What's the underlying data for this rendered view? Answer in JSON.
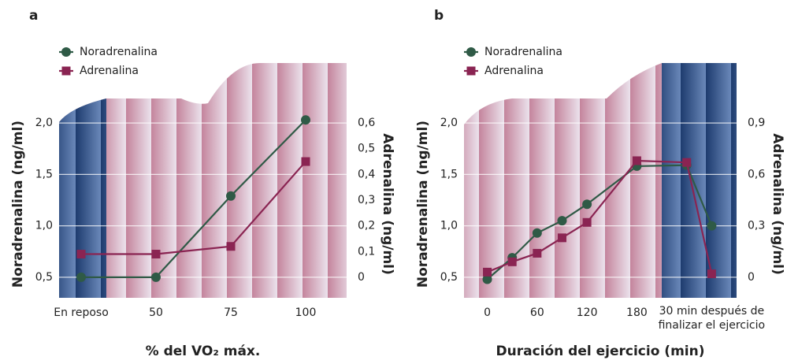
{
  "chart_data": [
    {
      "type": "line",
      "label": "a",
      "xlabel": "% del VO₂ máx.",
      "ylabel": "Noradrenalina (ng/ml)",
      "y2label": "Adrenalina (ng/ml)",
      "categories": [
        "En reposo",
        "50",
        "75",
        "100"
      ],
      "series": [
        {
          "name": "Noradrenalina",
          "color": "#2f5a46",
          "marker": "circle",
          "values": [
            0.5,
            0.5,
            1.29,
            2.03
          ]
        },
        {
          "name": "Adrenalina",
          "color": "#8a2452",
          "marker": "square",
          "axis": "y2",
          "values": [
            0.09,
            0.09,
            0.12,
            0.45
          ]
        }
      ],
      "ylim": [
        0.3,
        2.2
      ],
      "yticks": [
        {
          "value": 0.5,
          "label": "0,5"
        },
        {
          "value": 1,
          "label": "1,0"
        },
        {
          "value": 1.5,
          "label": "1,5"
        },
        {
          "value": 2,
          "label": "2,0"
        }
      ],
      "y2lim": [
        -0.08,
        0.68
      ],
      "y2ticks": [
        0,
        {
          "value": 0.1,
          "label": "0,1"
        },
        {
          "value": 0.2,
          "label": "0,2"
        },
        {
          "value": 0.3,
          "label": "0,3"
        },
        {
          "value": 0.4,
          "label": "0,4"
        },
        {
          "value": 0.5,
          "label": "0,5"
        },
        {
          "value": 0.6,
          "label": "0,6"
        }
      ],
      "grid": true,
      "legend": "upper left"
    },
    {
      "type": "line",
      "label": "b",
      "xlabel": "Duración del ejercicio (min)",
      "ylabel": "Noradrenalina (ng/ml)",
      "y2label": "Adrenalina (ng/ml)",
      "x": [
        0,
        30,
        60,
        90,
        120,
        180,
        240,
        270
      ],
      "xlim": [
        -28,
        300
      ],
      "xticks": [
        0,
        60,
        120,
        180,
        {
          "value": 270,
          "label": "30 min después de finalizar el ejercicio"
        }
      ],
      "series": [
        {
          "name": "Noradrenalina",
          "color": "#2f5a46",
          "marker": "circle",
          "values": [
            0.48,
            0.69,
            0.93,
            1.05,
            1.21,
            1.58,
            1.59,
            1.0
          ]
        },
        {
          "name": "Adrenalina",
          "color": "#8a2452",
          "marker": "square",
          "axis": "y2",
          "values": [
            0.03,
            0.09,
            0.14,
            0.23,
            0.32,
            0.68,
            0.67,
            0.02
          ]
        }
      ],
      "ylim": [
        0.3,
        2.2
      ],
      "yticks": [
        {
          "value": 0.5,
          "label": "0,5"
        },
        {
          "value": 1,
          "label": "1,0"
        },
        {
          "value": 1.5,
          "label": "1,5"
        },
        {
          "value": 2,
          "label": "2,0"
        }
      ],
      "y2lim": [
        -0.12,
        1.02
      ],
      "y2ticks": [
        0,
        {
          "value": 0.3,
          "label": "0,3"
        },
        {
          "value": 0.6,
          "label": "0,6"
        },
        {
          "value": 0.9,
          "label": "0,9"
        }
      ],
      "grid": true,
      "legend": "upper left"
    }
  ]
}
